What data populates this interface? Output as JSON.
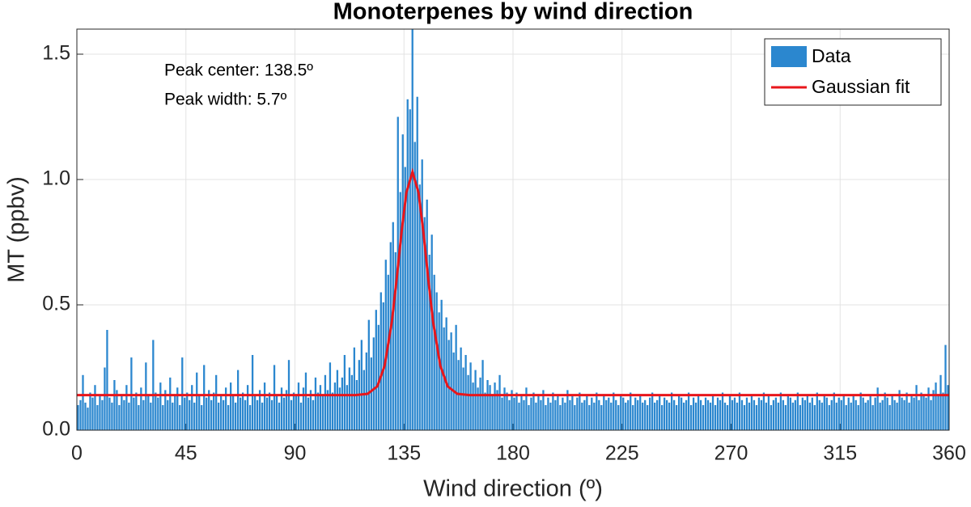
{
  "chart_data": {
    "type": "histogram",
    "title": "Monoterpenes by wind direction",
    "xlabel": "Wind direction (º)",
    "ylabel": "MT (ppbv)",
    "annotations": [
      "Peak center: 138.5º",
      "Peak width: 5.7º"
    ],
    "xlim": [
      0,
      360
    ],
    "ylim": [
      0,
      1.6
    ],
    "xticks": [
      0,
      45,
      90,
      135,
      180,
      225,
      270,
      315,
      360
    ],
    "yticks": [
      {
        "value": 0,
        "label": "0.0"
      },
      {
        "value": 0.5,
        "label": "0.5"
      },
      {
        "value": 1,
        "label": "1.0"
      },
      {
        "value": 1.5,
        "label": "1.5"
      }
    ],
    "grid": true,
    "legend": "upper right",
    "bins": [
      0,
      1,
      2,
      3,
      4,
      5,
      6,
      7,
      8,
      9,
      10,
      11,
      12,
      13,
      14,
      15,
      16,
      17,
      18,
      19,
      20,
      21,
      22,
      23,
      24,
      25,
      26,
      27,
      28,
      29,
      30,
      31,
      32,
      33,
      34,
      35,
      36,
      37,
      38,
      39,
      40,
      41,
      42,
      43,
      44,
      45,
      46,
      47,
      48,
      49,
      50,
      51,
      52,
      53,
      54,
      55,
      56,
      57,
      58,
      59,
      60,
      61,
      62,
      63,
      64,
      65,
      66,
      67,
      68,
      69,
      70,
      71,
      72,
      73,
      74,
      75,
      76,
      77,
      78,
      79,
      80,
      81,
      82,
      83,
      84,
      85,
      86,
      87,
      88,
      89,
      90,
      91,
      92,
      93,
      94,
      95,
      96,
      97,
      98,
      99,
      100,
      101,
      102,
      103,
      104,
      105,
      106,
      107,
      108,
      109,
      110,
      111,
      112,
      113,
      114,
      115,
      116,
      117,
      118,
      119,
      120,
      121,
      122,
      123,
      124,
      125,
      126,
      127,
      128,
      129,
      130,
      131,
      132,
      133,
      134,
      135,
      136,
      137,
      138,
      139,
      140,
      141,
      142,
      143,
      144,
      145,
      146,
      147,
      148,
      149,
      150,
      151,
      152,
      153,
      154,
      155,
      156,
      157,
      158,
      159,
      160,
      161,
      162,
      163,
      164,
      165,
      166,
      167,
      168,
      169,
      170,
      171,
      172,
      173,
      174,
      175,
      176,
      177,
      178,
      179,
      180,
      181,
      182,
      183,
      184,
      185,
      186,
      187,
      188,
      189,
      190,
      191,
      192,
      193,
      194,
      195,
      196,
      197,
      198,
      199,
      200,
      201,
      202,
      203,
      204,
      205,
      206,
      207,
      208,
      209,
      210,
      211,
      212,
      213,
      214,
      215,
      216,
      217,
      218,
      219,
      220,
      221,
      222,
      223,
      224,
      225,
      226,
      227,
      228,
      229,
      230,
      231,
      232,
      233,
      234,
      235,
      236,
      237,
      238,
      239,
      240,
      241,
      242,
      243,
      244,
      245,
      246,
      247,
      248,
      249,
      250,
      251,
      252,
      253,
      254,
      255,
      256,
      257,
      258,
      259,
      260,
      261,
      262,
      263,
      264,
      265,
      266,
      267,
      268,
      269,
      270,
      271,
      272,
      273,
      274,
      275,
      276,
      277,
      278,
      279,
      280,
      281,
      282,
      283,
      284,
      285,
      286,
      287,
      288,
      289,
      290,
      291,
      292,
      293,
      294,
      295,
      296,
      297,
      298,
      299,
      300,
      301,
      302,
      303,
      304,
      305,
      306,
      307,
      308,
      309,
      310,
      311,
      312,
      313,
      314,
      315,
      316,
      317,
      318,
      319,
      320,
      321,
      322,
      323,
      324,
      325,
      326,
      327,
      328,
      329,
      330,
      331,
      332,
      333,
      334,
      335,
      336,
      337,
      338,
      339,
      340,
      341,
      342,
      343,
      344,
      345,
      346,
      347,
      348,
      349,
      350,
      351,
      352,
      353,
      354,
      355,
      356,
      357,
      358,
      359,
      360
    ],
    "series": [
      {
        "name": "Data",
        "color": "#2b87cf",
        "values": [
          0.1,
          0.12,
          0.22,
          0.11,
          0.09,
          0.15,
          0.13,
          0.18,
          0.1,
          0.14,
          0.12,
          0.25,
          0.4,
          0.13,
          0.11,
          0.2,
          0.16,
          0.1,
          0.14,
          0.12,
          0.18,
          0.11,
          0.29,
          0.13,
          0.15,
          0.1,
          0.17,
          0.12,
          0.27,
          0.14,
          0.11,
          0.36,
          0.15,
          0.13,
          0.19,
          0.1,
          0.16,
          0.12,
          0.21,
          0.11,
          0.14,
          0.17,
          0.1,
          0.29,
          0.13,
          0.15,
          0.12,
          0.18,
          0.11,
          0.23,
          0.14,
          0.1,
          0.26,
          0.13,
          0.16,
          0.12,
          0.15,
          0.22,
          0.11,
          0.14,
          0.12,
          0.17,
          0.1,
          0.19,
          0.14,
          0.11,
          0.24,
          0.13,
          0.15,
          0.12,
          0.18,
          0.1,
          0.3,
          0.14,
          0.12,
          0.16,
          0.11,
          0.19,
          0.13,
          0.15,
          0.12,
          0.26,
          0.14,
          0.11,
          0.17,
          0.13,
          0.16,
          0.28,
          0.12,
          0.15,
          0.14,
          0.19,
          0.11,
          0.17,
          0.23,
          0.13,
          0.16,
          0.12,
          0.21,
          0.15,
          0.18,
          0.14,
          0.22,
          0.16,
          0.27,
          0.15,
          0.19,
          0.24,
          0.17,
          0.21,
          0.3,
          0.18,
          0.25,
          0.22,
          0.33,
          0.2,
          0.28,
          0.36,
          0.24,
          0.31,
          0.44,
          0.29,
          0.37,
          0.48,
          0.42,
          0.55,
          0.51,
          0.68,
          0.62,
          0.75,
          0.83,
          0.71,
          1.25,
          0.95,
          1.18,
          1.05,
          1.32,
          1.28,
          1.62,
          1.15,
          1.33,
          0.98,
          1.08,
          0.85,
          0.92,
          0.7,
          0.78,
          0.62,
          0.55,
          0.47,
          0.52,
          0.41,
          0.45,
          0.36,
          0.39,
          0.31,
          0.42,
          0.28,
          0.33,
          0.25,
          0.3,
          0.22,
          0.27,
          0.19,
          0.24,
          0.17,
          0.21,
          0.28,
          0.15,
          0.2,
          0.18,
          0.14,
          0.19,
          0.16,
          0.22,
          0.13,
          0.17,
          0.15,
          0.12,
          0.16,
          0.13,
          0.15,
          0.11,
          0.14,
          0.12,
          0.17,
          0.1,
          0.13,
          0.15,
          0.11,
          0.14,
          0.12,
          0.16,
          0.1,
          0.13,
          0.11,
          0.15,
          0.12,
          0.14,
          0.1,
          0.13,
          0.11,
          0.16,
          0.12,
          0.14,
          0.1,
          0.13,
          0.15,
          0.11,
          0.12,
          0.14,
          0.1,
          0.13,
          0.11,
          0.15,
          0.12,
          0.1,
          0.14,
          0.12,
          0.13,
          0.11,
          0.15,
          0.12,
          0.1,
          0.14,
          0.13,
          0.11,
          0.12,
          0.15,
          0.1,
          0.13,
          0.12,
          0.14,
          0.11,
          0.12,
          0.1,
          0.13,
          0.15,
          0.11,
          0.12,
          0.14,
          0.1,
          0.13,
          0.12,
          0.11,
          0.15,
          0.12,
          0.1,
          0.14,
          0.13,
          0.11,
          0.12,
          0.15,
          0.1,
          0.13,
          0.11,
          0.14,
          0.12,
          0.1,
          0.13,
          0.12,
          0.11,
          0.14,
          0.1,
          0.13,
          0.12,
          0.15,
          0.11,
          0.1,
          0.14,
          0.12,
          0.13,
          0.11,
          0.15,
          0.12,
          0.1,
          0.13,
          0.11,
          0.14,
          0.12,
          0.1,
          0.13,
          0.12,
          0.15,
          0.11,
          0.14,
          0.1,
          0.12,
          0.13,
          0.11,
          0.15,
          0.12,
          0.1,
          0.14,
          0.13,
          0.11,
          0.12,
          0.15,
          0.1,
          0.13,
          0.12,
          0.14,
          0.11,
          0.13,
          0.1,
          0.15,
          0.12,
          0.11,
          0.14,
          0.13,
          0.1,
          0.12,
          0.15,
          0.11,
          0.13,
          0.12,
          0.14,
          0.1,
          0.13,
          0.11,
          0.14,
          0.12,
          0.1,
          0.15,
          0.13,
          0.11,
          0.12,
          0.14,
          0.1,
          0.13,
          0.17,
          0.11,
          0.12,
          0.15,
          0.13,
          0.1,
          0.14,
          0.12,
          0.11,
          0.16,
          0.13,
          0.12,
          0.15,
          0.11,
          0.14,
          0.13,
          0.18,
          0.12,
          0.15,
          0.14,
          0.13,
          0.17,
          0.12,
          0.16,
          0.19,
          0.14,
          0.22,
          0.15,
          0.34,
          0.18
        ]
      },
      {
        "name": "Gaussian fit",
        "color": "#e8161b",
        "x": [
          0,
          100,
          115,
          120,
          124,
          127,
          130,
          132,
          134,
          136,
          138.5,
          141,
          143,
          145,
          147,
          150,
          153,
          157,
          162,
          180,
          360
        ],
        "values": [
          0.14,
          0.14,
          0.14,
          0.145,
          0.175,
          0.257,
          0.433,
          0.605,
          0.791,
          0.948,
          1.03,
          0.948,
          0.791,
          0.605,
          0.433,
          0.257,
          0.175,
          0.145,
          0.14,
          0.14,
          0.14
        ]
      }
    ]
  }
}
